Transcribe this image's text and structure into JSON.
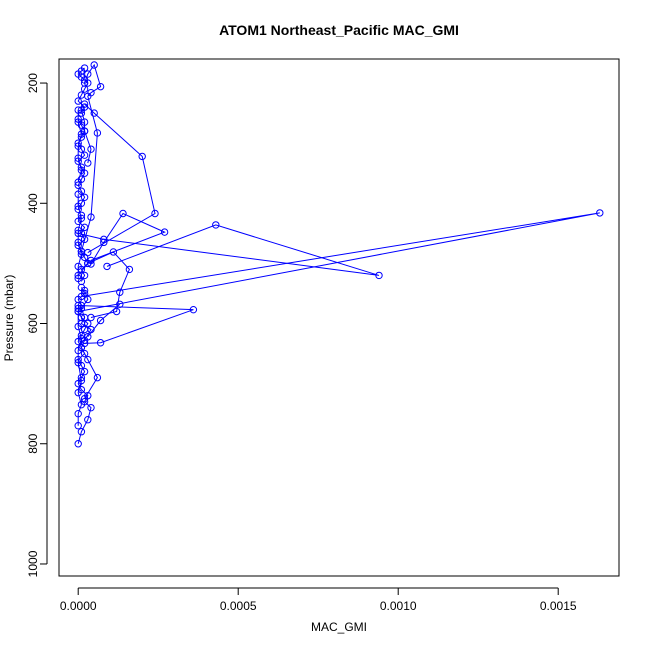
{
  "chart_data": {
    "type": "line",
    "title": "ATOM1 Northeast_Pacific MAC_GMI",
    "xlabel": "MAC_GMI",
    "ylabel": "Pressure (mbar)",
    "xlim": [
      -6e-05,
      0.00169
    ],
    "ylim": [
      1020,
      160
    ],
    "y_inverted": true,
    "x_ticks": [
      0.0,
      0.0005,
      0.001,
      0.0015
    ],
    "x_tick_labels": [
      "0.0000",
      "0.0005",
      "0.0010",
      "0.0015"
    ],
    "y_ticks": [
      200,
      400,
      600,
      800,
      1000
    ],
    "y_tick_labels": [
      "200",
      "400",
      "600",
      "800",
      "1000"
    ],
    "series_color": "#0000ff",
    "marker": "open-circle",
    "grid": false,
    "series": [
      {
        "x": [
          0.0,
          1e-05,
          3e-05,
          4e-05,
          2e-05,
          3e-05,
          1e-05,
          0.0,
          1e-05,
          2e-05,
          1e-05,
          0.0,
          2e-05,
          1e-05,
          0.0,
          1e-05,
          2e-05,
          3e-05,
          1e-05,
          0.0,
          1e-05,
          0.0,
          2e-05,
          1e-05
        ],
        "y": [
          800,
          780,
          760,
          740,
          730,
          720,
          710,
          700,
          690,
          680,
          670,
          660,
          650,
          640,
          630,
          620,
          610,
          600,
          590,
          580,
          570,
          560,
          550,
          540
        ]
      },
      {
        "x": [
          1e-05,
          2e-05,
          1e-05,
          3e-05,
          2e-05,
          1e-05,
          0.0,
          2e-05,
          1e-05,
          2e-05,
          0.0,
          1e-05
        ],
        "y": [
          530,
          520,
          510,
          500,
          490,
          480,
          470,
          460,
          450,
          440,
          430,
          420
        ]
      },
      {
        "x": [
          0.0,
          1e-05,
          2e-05,
          1e-05,
          0.0,
          1e-05,
          2e-05,
          1e-05,
          0.0,
          2e-05,
          1e-05,
          0.0,
          1e-05,
          2e-05,
          1e-05,
          0.0
        ],
        "y": [
          410,
          400,
          390,
          380,
          370,
          360,
          350,
          340,
          330,
          320,
          310,
          300,
          290,
          280,
          270,
          260
        ]
      },
      {
        "x": [
          1e-05,
          2e-05,
          0.0,
          1e-05,
          2e-05,
          3e-05,
          2e-05,
          1e-05,
          0.0,
          1e-05,
          2e-05
        ],
        "y": [
          250,
          240,
          230,
          220,
          210,
          200,
          195,
          190,
          185,
          180,
          175
        ]
      },
      {
        "x": [
          0.0,
          0.0,
          1e-05,
          0.0,
          1e-05,
          0.0,
          0.0,
          1e-05,
          0.0,
          0.0
        ],
        "y": [
          770,
          750,
          735,
          715,
          695,
          665,
          645,
          625,
          605,
          575
        ]
      },
      {
        "x": [
          0.0,
          0.0,
          1e-05,
          0.0,
          0.0,
          1e-05,
          0.0,
          0.0
        ],
        "y": [
          525,
          505,
          485,
          465,
          445,
          425,
          405,
          385
        ]
      },
      {
        "x": [
          0.0,
          1e-05,
          0.0,
          0.0,
          1e-05,
          0.0,
          0.0
        ],
        "y": [
          365,
          345,
          325,
          305,
          285,
          265,
          245
        ]
      },
      {
        "x": [
          2e-05,
          6e-05,
          3e-05,
          1e-05,
          2e-05,
          4e-05,
          1e-05,
          2e-05,
          1e-05,
          3e-05,
          2e-05
        ],
        "y": [
          725,
          690,
          660,
          640,
          628,
          610,
          600,
          590,
          575,
          560,
          545
        ]
      },
      {
        "x": [
          2e-05,
          7e-05,
          0.00036,
          0.0
        ],
        "y": [
          633,
          632,
          577,
          570
        ]
      },
      {
        "x": [
          3e-05,
          7e-05,
          0.00013
        ],
        "y": [
          622,
          595,
          568
        ]
      },
      {
        "x": [
          4e-05,
          0.00012,
          0.00013,
          0.00016,
          0.00011,
          3e-05,
          0.0
        ],
        "y": [
          590,
          580,
          548,
          510,
          481,
          500,
          520
        ]
      },
      {
        "x": [
          1e-05,
          0.00163,
          0.0
        ],
        "y": [
          555,
          416,
          580
        ]
      },
      {
        "x": [
          9e-05,
          0.00043,
          0.00094,
          8e-05,
          0.0
        ],
        "y": [
          505,
          436,
          520,
          460,
          450
        ]
      },
      {
        "x": [
          4e-05,
          0.00027,
          0.00014,
          8e-05,
          4e-05
        ],
        "y": [
          495,
          448,
          417,
          465,
          501
        ]
      },
      {
        "x": [
          3e-05,
          0.00024,
          0.0002,
          5e-05,
          2e-05
        ],
        "y": [
          482,
          417,
          322,
          250,
          235
        ]
      },
      {
        "x": [
          1e-05,
          4e-05,
          6e-05,
          3e-05,
          4e-05,
          7e-05,
          5e-05,
          3e-05,
          2e-05
        ],
        "y": [
          480,
          423,
          283,
          222,
          216,
          206,
          170,
          185,
          200
        ]
      },
      {
        "x": [
          3e-05,
          4e-05,
          2e-05,
          2e-05,
          1e-05
        ],
        "y": [
          333,
          310,
          280,
          265,
          245
        ]
      }
    ]
  }
}
